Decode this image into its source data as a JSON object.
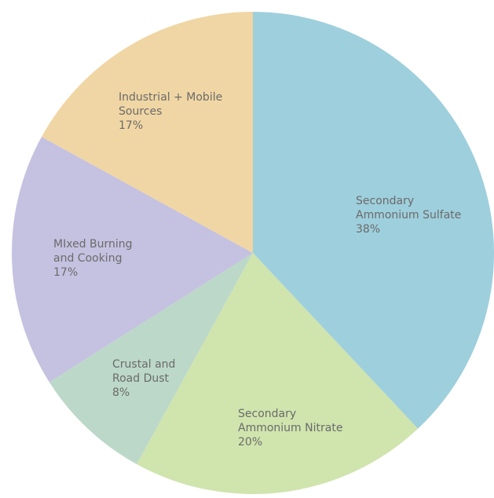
{
  "chart_data": {
    "type": "pie",
    "categories": [
      [
        "Secondary",
        "Ammonium Sulfate"
      ],
      [
        "Secondary",
        "Ammonium Nitrate"
      ],
      [
        "Crustal and",
        "Road Dust"
      ],
      [
        "MIxed Burning",
        "and Cooking"
      ],
      [
        "Industrial + Mobile",
        "Sources"
      ]
    ],
    "values": [
      38,
      20,
      8,
      17,
      17
    ],
    "value_labels": [
      "38%",
      "20%",
      "8%",
      "17%",
      "17%"
    ],
    "colors": [
      "#9ecfdc",
      "#d0e4ae",
      "#bcd8c8",
      "#c5c1e0",
      "#f0d6a4"
    ]
  }
}
